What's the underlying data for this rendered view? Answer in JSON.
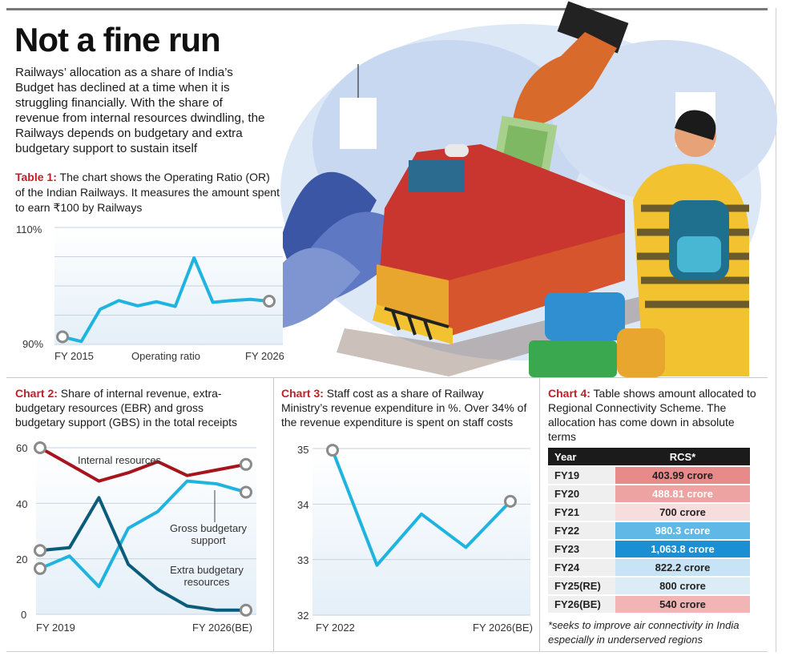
{
  "headline": "Not a fine run",
  "intro": "Railways’ allocation as a share of India’s Budget has declined at a time when it is struggling financially. With the share of revenue from internal resources dwindling, the Railways depends on budgetary and extra budgetary support to sustain itself",
  "colors": {
    "accent_red": "#c0202b",
    "line_cyan": "#1fb4e0",
    "line_darkred": "#a8141e",
    "line_teal": "#0b5c7a",
    "plot_bg": "#e4eff8"
  },
  "illustration": {
    "icons": [
      "hand-with-money-icon",
      "train-icon",
      "passenger-icon",
      "luggage-icon"
    ]
  },
  "chart_data": [
    {
      "id": "table1",
      "type": "line",
      "label": "Table 1:",
      "caption": "The chart shows the Operating Ratio (OR) of the Indian Railways. It measures the amount spent to earn ₹100 by Railways",
      "ylim": [
        90,
        110
      ],
      "yticks": [
        "110%",
        "90%"
      ],
      "x_tick_labels": [
        "FY 2015",
        "Operating ratio",
        "FY 2026"
      ],
      "series": [
        {
          "values": [
            91.3,
            90.5,
            96.0,
            97.5,
            96.6,
            97.3,
            96.5,
            104.8,
            97.2,
            97.5,
            97.7,
            97.4
          ]
        }
      ]
    },
    {
      "id": "chart2",
      "type": "line",
      "label": "Chart 2:",
      "caption": "Share of internal revenue, extra-budgetary resources (EBR) and gross budgetary support (GBS) in the total receipts",
      "ylim": [
        0,
        60
      ],
      "yticks": [
        60,
        40,
        20,
        0
      ],
      "x_tick_labels": [
        "FY 2019",
        "FY 2026(BE)"
      ],
      "series": [
        {
          "name": "Internal resources",
          "values": [
            60,
            54,
            48,
            51,
            55,
            50,
            52,
            54
          ]
        },
        {
          "name": "Gross budgetary support",
          "values": [
            16.5,
            21,
            10,
            31,
            37,
            48,
            47,
            44
          ]
        },
        {
          "name": "Extra budgetary resources",
          "values": [
            23,
            24,
            42,
            18,
            9,
            3,
            1.5,
            1.5
          ]
        }
      ]
    },
    {
      "id": "chart3",
      "type": "line",
      "label": "Chart 3:",
      "caption": "Staff cost as a share of Railway Ministry’s revenue expenditure in %. Over 34% of the revenue expenditure is spent on staff costs",
      "ylim": [
        32,
        35
      ],
      "yticks": [
        35,
        34,
        33,
        32
      ],
      "x_tick_labels": [
        "FY 2022",
        "FY 2026(BE)"
      ],
      "series": [
        {
          "values": [
            34.97,
            32.9,
            33.82,
            33.22,
            34.05
          ]
        }
      ]
    },
    {
      "id": "chart4",
      "type": "table",
      "label": "Chart 4:",
      "caption": "Table shows amount allocated to Regional Connectivity Scheme. The allocation has come down in absolute terms",
      "columns": [
        "Year",
        "RCS*"
      ],
      "rows": [
        {
          "year": "FY19",
          "value": "403.99 crore",
          "bg": "#e88a8a",
          "fg": "#222222"
        },
        {
          "year": "FY20",
          "value": "488.81 crore",
          "bg": "#eea3a3",
          "fg": "#ffffff"
        },
        {
          "year": "FY21",
          "value": "700 crore",
          "bg": "#f7dede",
          "fg": "#222222"
        },
        {
          "year": "FY22",
          "value": "980.3 crore",
          "bg": "#5fb8e6",
          "fg": "#ffffff"
        },
        {
          "year": "FY23",
          "value": "1,063.8 crore",
          "bg": "#1a8fd4",
          "fg": "#ffffff"
        },
        {
          "year": "FY24",
          "value": "822.2 crore",
          "bg": "#c6e4f5",
          "fg": "#222222"
        },
        {
          "year": "FY25(RE)",
          "value": "800 crore",
          "bg": "#dcecf7",
          "fg": "#222222"
        },
        {
          "year": "FY26(BE)",
          "value": "540 crore",
          "bg": "#f2b5b5",
          "fg": "#222222"
        }
      ],
      "footnote": "*seeks to improve air connectivity in India especially in underserved regions"
    }
  ]
}
